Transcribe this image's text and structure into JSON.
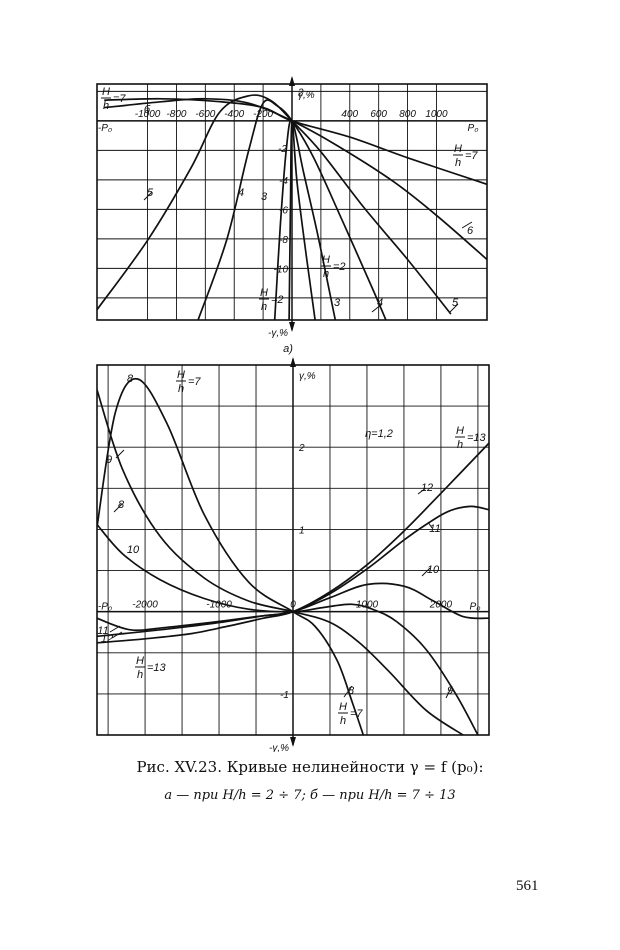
{
  "caption": {
    "line1": "Рис. XV.23. Кривые нелинейности γ = f (p₀):",
    "line2": "а — при H/h = 2 ÷ 7; б — при H/h = 7 ÷ 13"
  },
  "page_number": "561",
  "chart_data": [
    {
      "type": "line",
      "panel_label": "а)",
      "xlabel_pos": "P₀",
      "xlabel_neg": "-P₀",
      "ylabel_pos": "γ,%",
      "ylabel_neg": "-γ,%",
      "x_ticks": [
        -1000,
        -800,
        -600,
        -400,
        -200,
        400,
        600,
        800,
        1000
      ],
      "y_ticks": [
        2,
        -4,
        -6,
        -8,
        -10
      ],
      "y_extra_label": "-2",
      "xlim": [
        -1350,
        1350
      ],
      "ylim": [
        -13.5,
        2.5
      ],
      "grid": true,
      "annotations": [
        "H/h=7",
        "H/h=2",
        "H/h=2",
        "б"
      ],
      "series": [
        {
          "name": "H/h=7",
          "points": [
            [
              -1300,
              1.4
            ],
            [
              -900,
              1.5
            ],
            [
              -500,
              1.3
            ],
            [
              -200,
              0.9
            ],
            [
              0,
              0
            ],
            [
              400,
              -1.1
            ],
            [
              800,
              -2.5
            ],
            [
              1350,
              -4.3
            ]
          ]
        },
        {
          "name": "6",
          "points": [
            [
              -1300,
              0.9
            ],
            [
              -900,
              1.3
            ],
            [
              -600,
              1.5
            ],
            [
              -300,
              1.2
            ],
            [
              0,
              0
            ],
            [
              300,
              -1.6
            ],
            [
              700,
              -4.1
            ],
            [
              1000,
              -6.4
            ],
            [
              1350,
              -9.4
            ]
          ]
        },
        {
          "name": "5",
          "points": [
            [
              -1350,
              -12.8
            ],
            [
              -1000,
              -8.1
            ],
            [
              -700,
              -3.2
            ],
            [
              -500,
              0.6
            ],
            [
              -300,
              1.7
            ],
            [
              -150,
              1.4
            ],
            [
              0,
              0
            ],
            [
              200,
              -2.1
            ],
            [
              500,
              -5.9
            ],
            [
              800,
              -9.4
            ],
            [
              1100,
              -13.1
            ]
          ]
        },
        {
          "name": "4",
          "points": [
            [
              -650,
              -13.5
            ],
            [
              -450,
              -8.0
            ],
            [
              -300,
              -2.0
            ],
            [
              -200,
              1.2
            ],
            [
              -100,
              1.0
            ],
            [
              0,
              0
            ],
            [
              150,
              -2.5
            ],
            [
              350,
              -6.8
            ],
            [
              550,
              -11.2
            ],
            [
              650,
              -13.5
            ]
          ]
        },
        {
          "name": "3",
          "points": [
            [
              -120,
              -13.5
            ],
            [
              -80,
              -7.0
            ],
            [
              -40,
              -2.0
            ],
            [
              0,
              0
            ],
            [
              80,
              -3.5
            ],
            [
              180,
              -7.8
            ],
            [
              300,
              -13.5
            ]
          ]
        },
        {
          "name": "2",
          "points": [
            [
              -20,
              -13.5
            ],
            [
              -10,
              -5.0
            ],
            [
              0,
              0
            ],
            [
              35,
              -4.2
            ],
            [
              100,
              -9.2
            ],
            [
              160,
              -13.5
            ]
          ]
        }
      ]
    },
    {
      "type": "line",
      "panel_label": "б)",
      "xlabel_pos": "P₀",
      "xlabel_neg": "-P₀",
      "ylabel_pos": "γ,%",
      "ylabel_neg": "-γ,%",
      "x_ticks": [
        -2000,
        -1000,
        0,
        1000,
        2000
      ],
      "y_ticks": [
        2,
        1,
        -1
      ],
      "xlim": [
        -2650,
        2650
      ],
      "ylim": [
        -1.5,
        3.0
      ],
      "grid": true,
      "annotations": [
        "η=1,2",
        "H/h=7",
        "H/h=13",
        "H/h=13",
        "H/h=7"
      ],
      "series": [
        {
          "name": "8",
          "points": [
            [
              -2650,
              1.03
            ],
            [
              -2400,
              2.43
            ],
            [
              -2100,
              2.83
            ],
            [
              -1700,
              2.28
            ],
            [
              -1200,
              1.18
            ],
            [
              -600,
              0.36
            ],
            [
              0,
              0
            ],
            [
              300,
              -0.18
            ],
            [
              600,
              -0.6
            ],
            [
              800,
              -1.1
            ],
            [
              950,
              -1.5
            ]
          ]
        },
        {
          "name": "9",
          "points": [
            [
              -2650,
              2.7
            ],
            [
              -2300,
              1.72
            ],
            [
              -1800,
              0.92
            ],
            [
              -1200,
              0.41
            ],
            [
              -600,
              0.13
            ],
            [
              0,
              0
            ],
            [
              500,
              -0.13
            ],
            [
              900,
              -0.38
            ],
            [
              1300,
              -0.73
            ],
            [
              1800,
              -1.2
            ],
            [
              2300,
              -1.5
            ]
          ]
        },
        {
          "name": "10",
          "points": [
            [
              -2650,
              1.06
            ],
            [
              -2300,
              0.7
            ],
            [
              -1800,
              0.39
            ],
            [
              -1200,
              0.16
            ],
            [
              -600,
              0.03
            ],
            [
              0,
              0
            ],
            [
              400,
              0.05
            ],
            [
              800,
              0.09
            ],
            [
              1100,
              0.02
            ],
            [
              1400,
              -0.12
            ],
            [
              1800,
              -0.46
            ],
            [
              2200,
              -1.0
            ],
            [
              2500,
              -1.5
            ]
          ]
        },
        {
          "name": "11",
          "points": [
            [
              -2650,
              -0.08
            ],
            [
              -2200,
              -0.22
            ],
            [
              -1700,
              -0.19
            ],
            [
              -1100,
              -0.13
            ],
            [
              -500,
              -0.06
            ],
            [
              0,
              0
            ],
            [
              500,
              0.17
            ],
            [
              1000,
              0.33
            ],
            [
              1500,
              0.31
            ],
            [
              1900,
              0.13
            ],
            [
              2300,
              -0.06
            ],
            [
              2650,
              -0.08
            ]
          ]
        },
        {
          "name": "12",
          "points": [
            [
              -2650,
              -0.3
            ],
            [
              -2100,
              -0.25
            ],
            [
              -1500,
              -0.19
            ],
            [
              -900,
              -0.12
            ],
            [
              -400,
              -0.05
            ],
            [
              0,
              0
            ],
            [
              500,
              0.22
            ],
            [
              1000,
              0.52
            ],
            [
              1500,
              0.87
            ],
            [
              1800,
              1.06
            ],
            [
              2100,
              1.22
            ],
            [
              2400,
              1.28
            ],
            [
              2650,
              1.24
            ]
          ]
        },
        {
          "name": "H/h=13",
          "points": [
            [
              -2650,
              -0.38
            ],
            [
              -2000,
              -0.33
            ],
            [
              -1400,
              -0.27
            ],
            [
              -900,
              -0.18
            ],
            [
              -400,
              -0.08
            ],
            [
              0,
              0
            ],
            [
              500,
              0.24
            ],
            [
              1000,
              0.57
            ],
            [
              1500,
              0.98
            ],
            [
              2000,
              1.44
            ],
            [
              2650,
              2.05
            ]
          ]
        }
      ]
    }
  ]
}
